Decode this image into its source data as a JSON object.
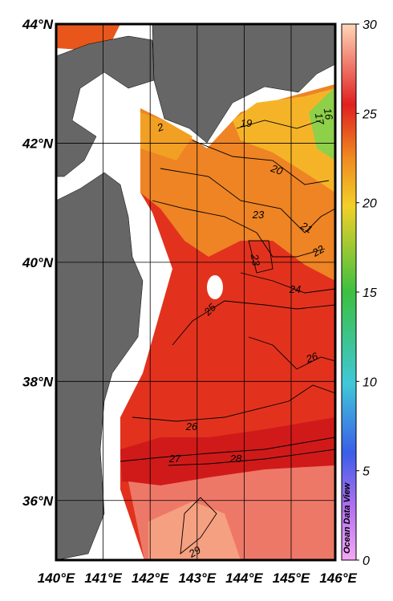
{
  "map": {
    "lat_ticks": [
      {
        "value": 44,
        "label": "44°N"
      },
      {
        "value": 42,
        "label": "42°N"
      },
      {
        "value": 40,
        "label": "40°N"
      },
      {
        "value": 38,
        "label": "38°N"
      },
      {
        "value": 36,
        "label": "36°N"
      }
    ],
    "lon_ticks": [
      {
        "value": 140,
        "label": "140°E"
      },
      {
        "value": 141,
        "label": "141°E"
      },
      {
        "value": 142,
        "label": "142°E"
      },
      {
        "value": 143,
        "label": "143°E"
      },
      {
        "value": 144,
        "label": "144°E"
      },
      {
        "value": 145,
        "label": "145°E"
      },
      {
        "value": 146,
        "label": "146°E"
      }
    ],
    "latlim": [
      35,
      44
    ],
    "lonlim": [
      140,
      146
    ],
    "contour_labels": [
      2,
      19,
      20,
      21,
      22,
      23,
      23,
      24,
      25,
      26,
      26,
      27,
      28,
      29,
      17,
      16
    ],
    "colorbar": {
      "lim": [
        0,
        30
      ],
      "ticks": [
        0,
        5,
        10,
        15,
        20,
        25,
        30
      ]
    },
    "watermark": "Ocean Data View"
  }
}
